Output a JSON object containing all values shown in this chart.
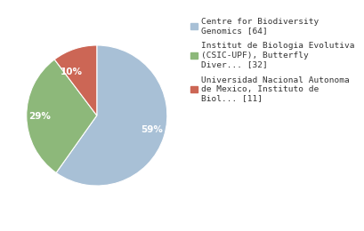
{
  "slices": [
    64,
    32,
    11
  ],
  "pct_labels": [
    "59%",
    "29%",
    "10%"
  ],
  "colors": [
    "#a8c0d6",
    "#8db87a",
    "#cc6655"
  ],
  "legend_labels": [
    "Centre for Biodiversity\nGenomics [64]",
    "Institut de Biologia Evolutiva\n(CSIC-UPF), Butterfly\nDiver... [32]",
    "Universidad Nacional Autonoma\nde Mexico, Instituto de\nBiol... [11]"
  ],
  "startangle": 90,
  "text_color": "white",
  "background_color": "#ffffff",
  "label_fontsize": 7.5,
  "legend_fontsize": 6.8
}
